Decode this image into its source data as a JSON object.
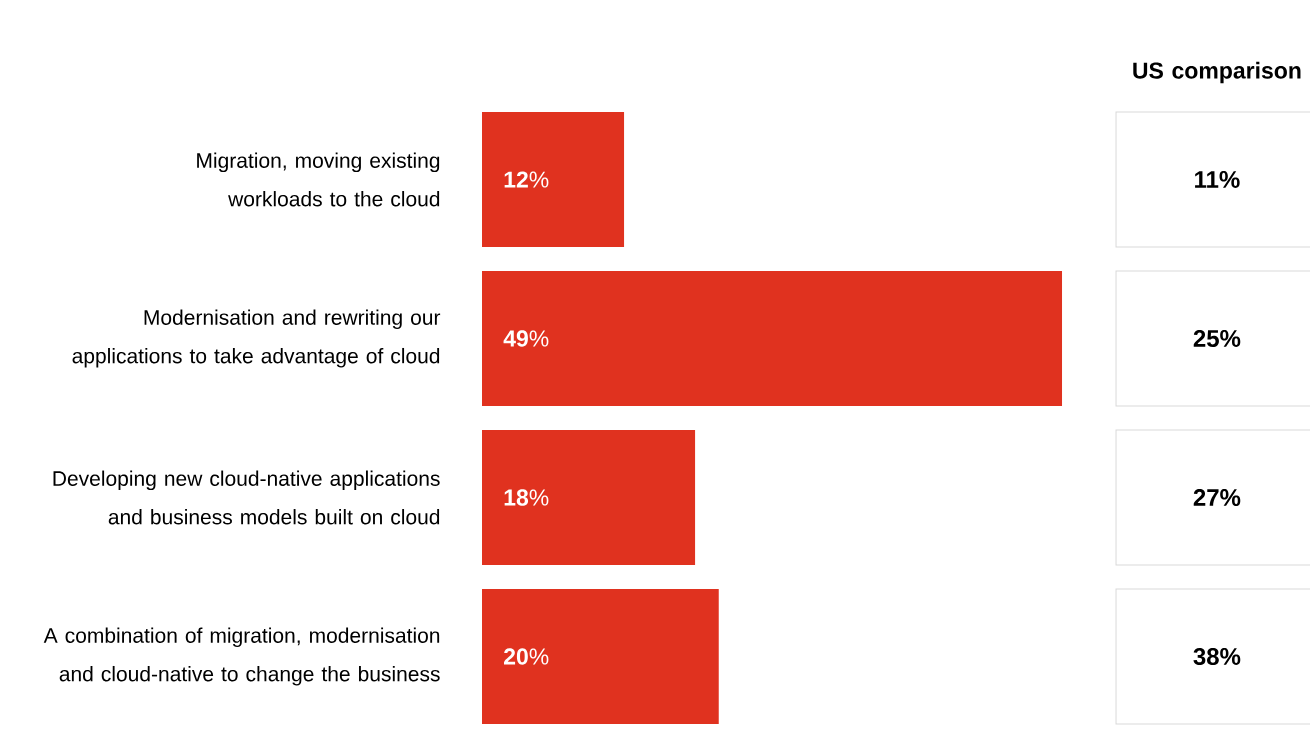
{
  "chart_data": [
    {
      "type": "bar",
      "orientation": "horizontal",
      "categories": [
        "Migration, moving existing workloads to the cloud",
        "Modernisation and rewriting our applications to take advantage of cloud",
        "Developing new cloud-native applications and business models built on cloud",
        "A combination of migration, modernisation and cloud-native to change the business"
      ],
      "values": [
        12,
        49,
        18,
        20
      ],
      "value_labels": [
        "**12**%",
        "**49**%",
        "**18**%",
        "**20**%"
      ],
      "color": "#e0321f"
    },
    {
      "type": "other",
      "title": "US comparison",
      "categories": [
        null,
        null,
        null,
        null
      ],
      "values": [
        11,
        25,
        27,
        38
      ],
      "value_labels": [
        "11%",
        "25%",
        "27%",
        "38%"
      ]
    }
  ]
}
